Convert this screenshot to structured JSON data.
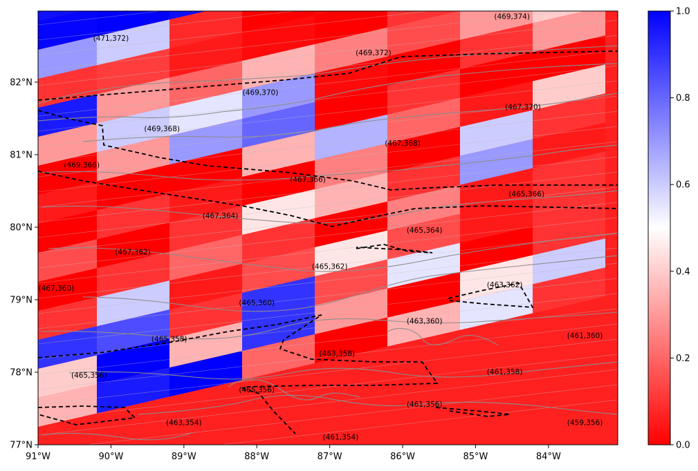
{
  "map": {
    "lon_range": [
      -91,
      -83.1
    ],
    "lat_range": [
      77,
      83
    ],
    "lon_ticks": [
      {
        "value": -91,
        "label": "91°W"
      },
      {
        "value": -90,
        "label": "90°W"
      },
      {
        "value": -89,
        "label": "89°W"
      },
      {
        "value": -88,
        "label": "88°W"
      },
      {
        "value": -87,
        "label": "87°W"
      },
      {
        "value": -86,
        "label": "86°W"
      },
      {
        "value": -85,
        "label": "85°W"
      },
      {
        "value": -84,
        "label": "84°W"
      }
    ],
    "lat_ticks": [
      {
        "value": 77,
        "label": "77°N"
      },
      {
        "value": 78,
        "label": "78°N"
      },
      {
        "value": 79,
        "label": "79°N"
      },
      {
        "value": 80,
        "label": "80°N"
      },
      {
        "value": 81,
        "label": "81°N"
      },
      {
        "value": 82,
        "label": "82°N"
      }
    ],
    "colorbar": {
      "colormap": "bwr_r",
      "low_color": "#ff0000",
      "mid_color": "#ffffff",
      "high_color": "#0000ff",
      "range": [
        0,
        1
      ],
      "ticks": [
        {
          "value": 0.0,
          "label": "0.0"
        },
        {
          "value": 0.2,
          "label": "0.2"
        },
        {
          "value": 0.4,
          "label": "0.4"
        },
        {
          "value": 0.6,
          "label": "0.6"
        },
        {
          "value": 0.8,
          "label": "0.8"
        },
        {
          "value": 1.0,
          "label": "1.0"
        }
      ]
    },
    "coastline_color": "#8c8c8c",
    "grid_line_color": "#bbbbbb",
    "boundary_style": "black dashed",
    "cell_labels": [
      {
        "text": "(469,374)",
        "lon": -84.5,
        "lat": 82.9
      },
      {
        "text": "(471,372)",
        "lon": -90.0,
        "lat": 82.6
      },
      {
        "text": "(469,372)",
        "lon": -86.4,
        "lat": 82.4
      },
      {
        "text": "(469,370)",
        "lon": -87.95,
        "lat": 81.85
      },
      {
        "text": "(467,370)",
        "lon": -84.35,
        "lat": 81.65
      },
      {
        "text": "(469,368)",
        "lon": -89.3,
        "lat": 81.35
      },
      {
        "text": "(467,368)",
        "lon": -86.0,
        "lat": 81.15
      },
      {
        "text": "(469,366)",
        "lon": -90.4,
        "lat": 80.85
      },
      {
        "text": "(467,366)",
        "lon": -87.3,
        "lat": 80.65
      },
      {
        "text": "(465,366)",
        "lon": -84.3,
        "lat": 80.45
      },
      {
        "text": "(467,364)",
        "lon": -88.5,
        "lat": 80.15
      },
      {
        "text": "(465,364)",
        "lon": -85.7,
        "lat": 79.95
      },
      {
        "text": "(467,362)",
        "lon": -89.7,
        "lat": 79.65
      },
      {
        "text": "(465,362)",
        "lon": -87.0,
        "lat": 79.45
      },
      {
        "text": "(463,362)",
        "lon": -84.6,
        "lat": 79.2
      },
      {
        "text": "(467,360)",
        "lon": -90.75,
        "lat": 79.15
      },
      {
        "text": "(465,360)",
        "lon": -88.0,
        "lat": 78.95
      },
      {
        "text": "(463,360)",
        "lon": -85.7,
        "lat": 78.7
      },
      {
        "text": "(461,360)",
        "lon": -83.5,
        "lat": 78.5
      },
      {
        "text": "(465,358)",
        "lon": -89.2,
        "lat": 78.45
      },
      {
        "text": "(463,358)",
        "lon": -86.9,
        "lat": 78.25
      },
      {
        "text": "(461,358)",
        "lon": -84.6,
        "lat": 78.0
      },
      {
        "text": "(465,356)",
        "lon": -90.3,
        "lat": 77.95
      },
      {
        "text": "(465,356)",
        "lon": -88.0,
        "lat": 77.75
      },
      {
        "text": "(461,356)",
        "lon": -85.7,
        "lat": 77.55
      },
      {
        "text": "(463,354)",
        "lon": -89.0,
        "lat": 77.3
      },
      {
        "text": "(459,356)",
        "lon": -83.5,
        "lat": 77.3
      },
      {
        "text": "(461,354)",
        "lon": -86.85,
        "lat": 77.1
      }
    ]
  }
}
